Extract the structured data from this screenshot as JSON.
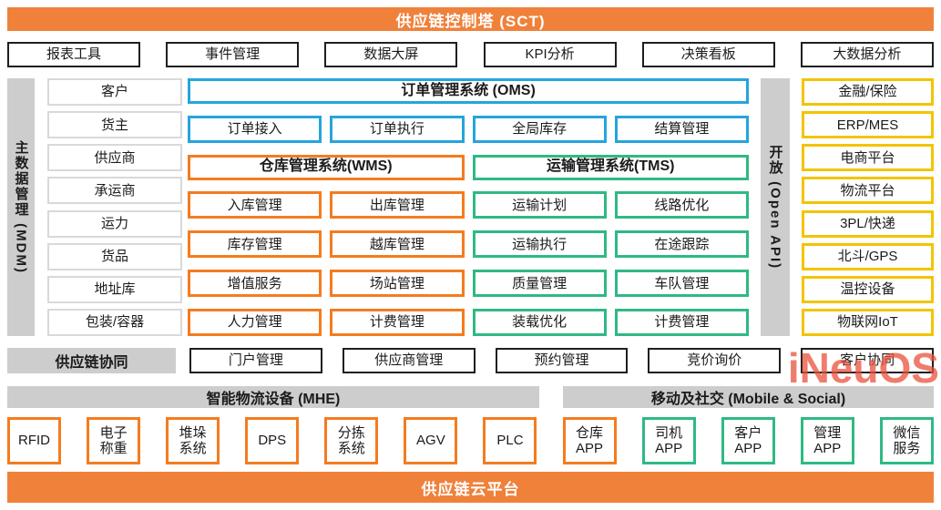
{
  "banners": {
    "top": "供应链控制塔 (SCT)",
    "bottom": "供应链云平台"
  },
  "top_row": {
    "items": [
      "报表工具",
      "事件管理",
      "数据大屏",
      "KPI分析",
      "决策看板",
      "大数据分析"
    ]
  },
  "mdm": {
    "label": "主数据管理 (MDM)",
    "items": [
      "客户",
      "货主",
      "供应商",
      "承运商",
      "运力",
      "货品",
      "地址库",
      "包装/容器"
    ]
  },
  "oms": {
    "title": "订单管理系统 (OMS)",
    "items": [
      "订单接入",
      "订单执行",
      "全局库存",
      "结算管理"
    ]
  },
  "wms": {
    "title": "仓库管理系统(WMS)",
    "items": [
      "入库管理",
      "出库管理",
      "库存管理",
      "越库管理",
      "增值服务",
      "场站管理",
      "人力管理",
      "计费管理"
    ]
  },
  "tms": {
    "title": "运输管理系统(TMS)",
    "items": [
      "运输计划",
      "线路优化",
      "运输执行",
      "在途跟踪",
      "质量管理",
      "车队管理",
      "装载优化",
      "计费管理"
    ]
  },
  "open_api": {
    "label": "开放 (Open API)",
    "items": [
      "金融/保险",
      "ERP/MES",
      "电商平台",
      "物流平台",
      "3PL/快递",
      "北斗/GPS",
      "温控设备",
      "物联网IoT"
    ]
  },
  "collaboration": {
    "label": "供应链协同",
    "items": [
      "门户管理",
      "供应商管理",
      "预约管理",
      "竞价询价",
      "客户协同"
    ]
  },
  "mhe": {
    "label": "智能物流设备 (MHE)",
    "items": [
      "RFID",
      "电子\n称重",
      "堆垛\n系统",
      "DPS",
      "分拣\n系统",
      "AGV",
      "PLC"
    ]
  },
  "mobile_social": {
    "label": "移动及社交 (Mobile & Social)",
    "items": [
      "仓库\nAPP",
      "司机\nAPP",
      "客户\nAPP",
      "管理\nAPP",
      "微信\n服务"
    ]
  },
  "watermark": "iNeuOS",
  "colors": {
    "banner_orange": "#F0813B",
    "border_orange": "#F47C1F",
    "border_blue": "#25A5DC",
    "border_green": "#2FB984",
    "border_yellow": "#F2C400",
    "gray_bar": "#CDCDCD",
    "watermark_red": "#EA503B"
  }
}
